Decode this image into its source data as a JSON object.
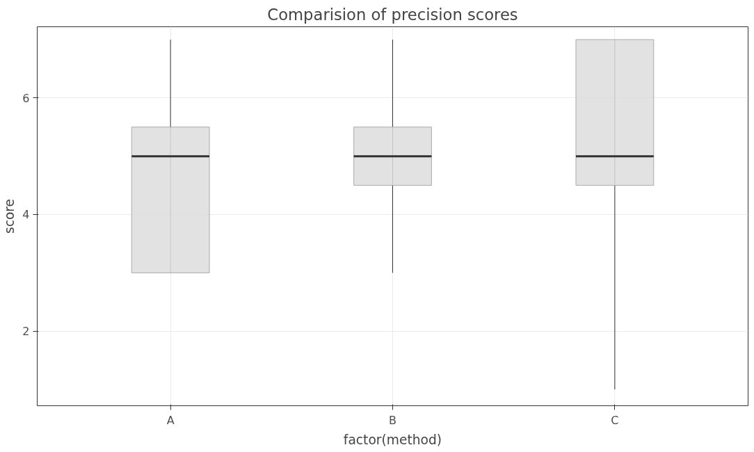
{
  "chart_data": {
    "type": "box",
    "title": "Comparision of precision scores",
    "xlabel": "factor(method)",
    "ylabel": "score",
    "categories": [
      "A",
      "B",
      "C"
    ],
    "boxes": [
      {
        "low": 3,
        "q1": 3,
        "median": 5,
        "q3": 5.5,
        "high": 7
      },
      {
        "low": 3,
        "q1": 4.5,
        "median": 5,
        "q3": 5.5,
        "high": 7
      },
      {
        "low": 1,
        "q1": 4.5,
        "median": 5,
        "q3": 7,
        "high": 7
      }
    ],
    "color": "#dddddd",
    "ylim": [
      0.72,
      7.22
    ],
    "yticks": [
      2,
      4,
      6
    ],
    "grid": true
  }
}
